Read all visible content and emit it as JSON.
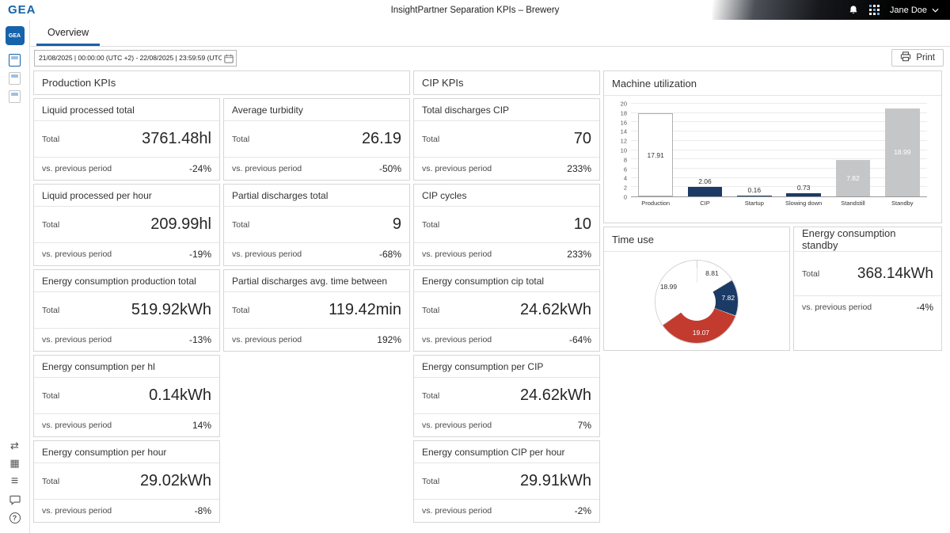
{
  "topbar": {
    "logo": "GEA",
    "title": "InsightPartner Separation KPIs – Brewery",
    "user_name": "Jane Doe"
  },
  "toolbar": {
    "tab_label": "Overview",
    "date_range": "21/08/2025 | 00:00:00 (UTC +2) - 22/08/2025 | 23:59:59 (UTC +2 )",
    "print_label": "Print"
  },
  "labels": {
    "total": "Total",
    "prev": "vs. previous period"
  },
  "icons": {
    "swap": "⇄",
    "grid": "▦",
    "list": "≡",
    "help": "?"
  },
  "production": {
    "title": "Production KPIs",
    "col1": [
      {
        "title": "Liquid processed total",
        "value": "3761.48hl",
        "delta": "-24%"
      },
      {
        "title": "Liquid processed per hour",
        "value": "209.99hl",
        "delta": "-19%"
      },
      {
        "title": "Energy consumption production total",
        "value": "519.92kWh",
        "delta": "-13%"
      },
      {
        "title": "Energy consumption per hl",
        "value": "0.14kWh",
        "delta": "14%"
      },
      {
        "title": "Energy consumption per hour",
        "value": "29.02kWh",
        "delta": "-8%"
      }
    ],
    "col2": [
      {
        "title": "Average turbidity",
        "value": "26.19",
        "delta": "-50%"
      },
      {
        "title": "Partial discharges total",
        "value": "9",
        "delta": "-68%"
      },
      {
        "title": "Partial discharges avg. time between",
        "value": "119.42min",
        "delta": "192%"
      }
    ]
  },
  "cip": {
    "title": "CIP KPIs",
    "cards": [
      {
        "title": "Total discharges CIP",
        "value": "70",
        "delta": "233%"
      },
      {
        "title": "CIP cycles",
        "value": "10",
        "delta": "233%"
      },
      {
        "title": "Energy consumption cip total",
        "value": "24.62kWh",
        "delta": "-64%"
      },
      {
        "title": "Energy consumption per CIP",
        "value": "24.62kWh",
        "delta": "7%"
      },
      {
        "title": "Energy consumption CIP per hour",
        "value": "29.91kWh",
        "delta": "-2%"
      }
    ]
  },
  "standby": {
    "title": "Energy consumption standby",
    "value": "368.14kWh",
    "delta": "-4%"
  },
  "chart_data": [
    {
      "type": "bar",
      "title": "Machine utilization",
      "categories": [
        "Production",
        "CIP",
        "Startup",
        "Slowing down",
        "Standstill",
        "Standby"
      ],
      "values": [
        17.91,
        2.06,
        0.16,
        0.73,
        7.82,
        18.99
      ],
      "ylim": [
        0,
        20
      ],
      "ytick_step": 2,
      "grid": true,
      "legend": false,
      "bar_colors": [
        "#ffffff",
        "#1b3a66",
        "#1b3a66",
        "#1b3a66",
        "#c4c6c8",
        "#c4c6c8"
      ],
      "label_colors": [
        "#333333",
        "#333333",
        "#333333",
        "#333333",
        "#ffffff",
        "#ffffff"
      ]
    },
    {
      "type": "pie",
      "title": "Time use",
      "donut": true,
      "labels": [
        "8.81",
        "7.82",
        "19.07",
        "18.99"
      ],
      "values": [
        8.81,
        7.82,
        19.07,
        18.99
      ],
      "colors": [
        "#ffffff",
        "#1b3a66",
        "#c23b2e",
        "#ffffff"
      ],
      "label_colors": [
        "#333333",
        "#ffffff",
        "#ffffff",
        "#333333"
      ],
      "legend": false
    }
  ]
}
